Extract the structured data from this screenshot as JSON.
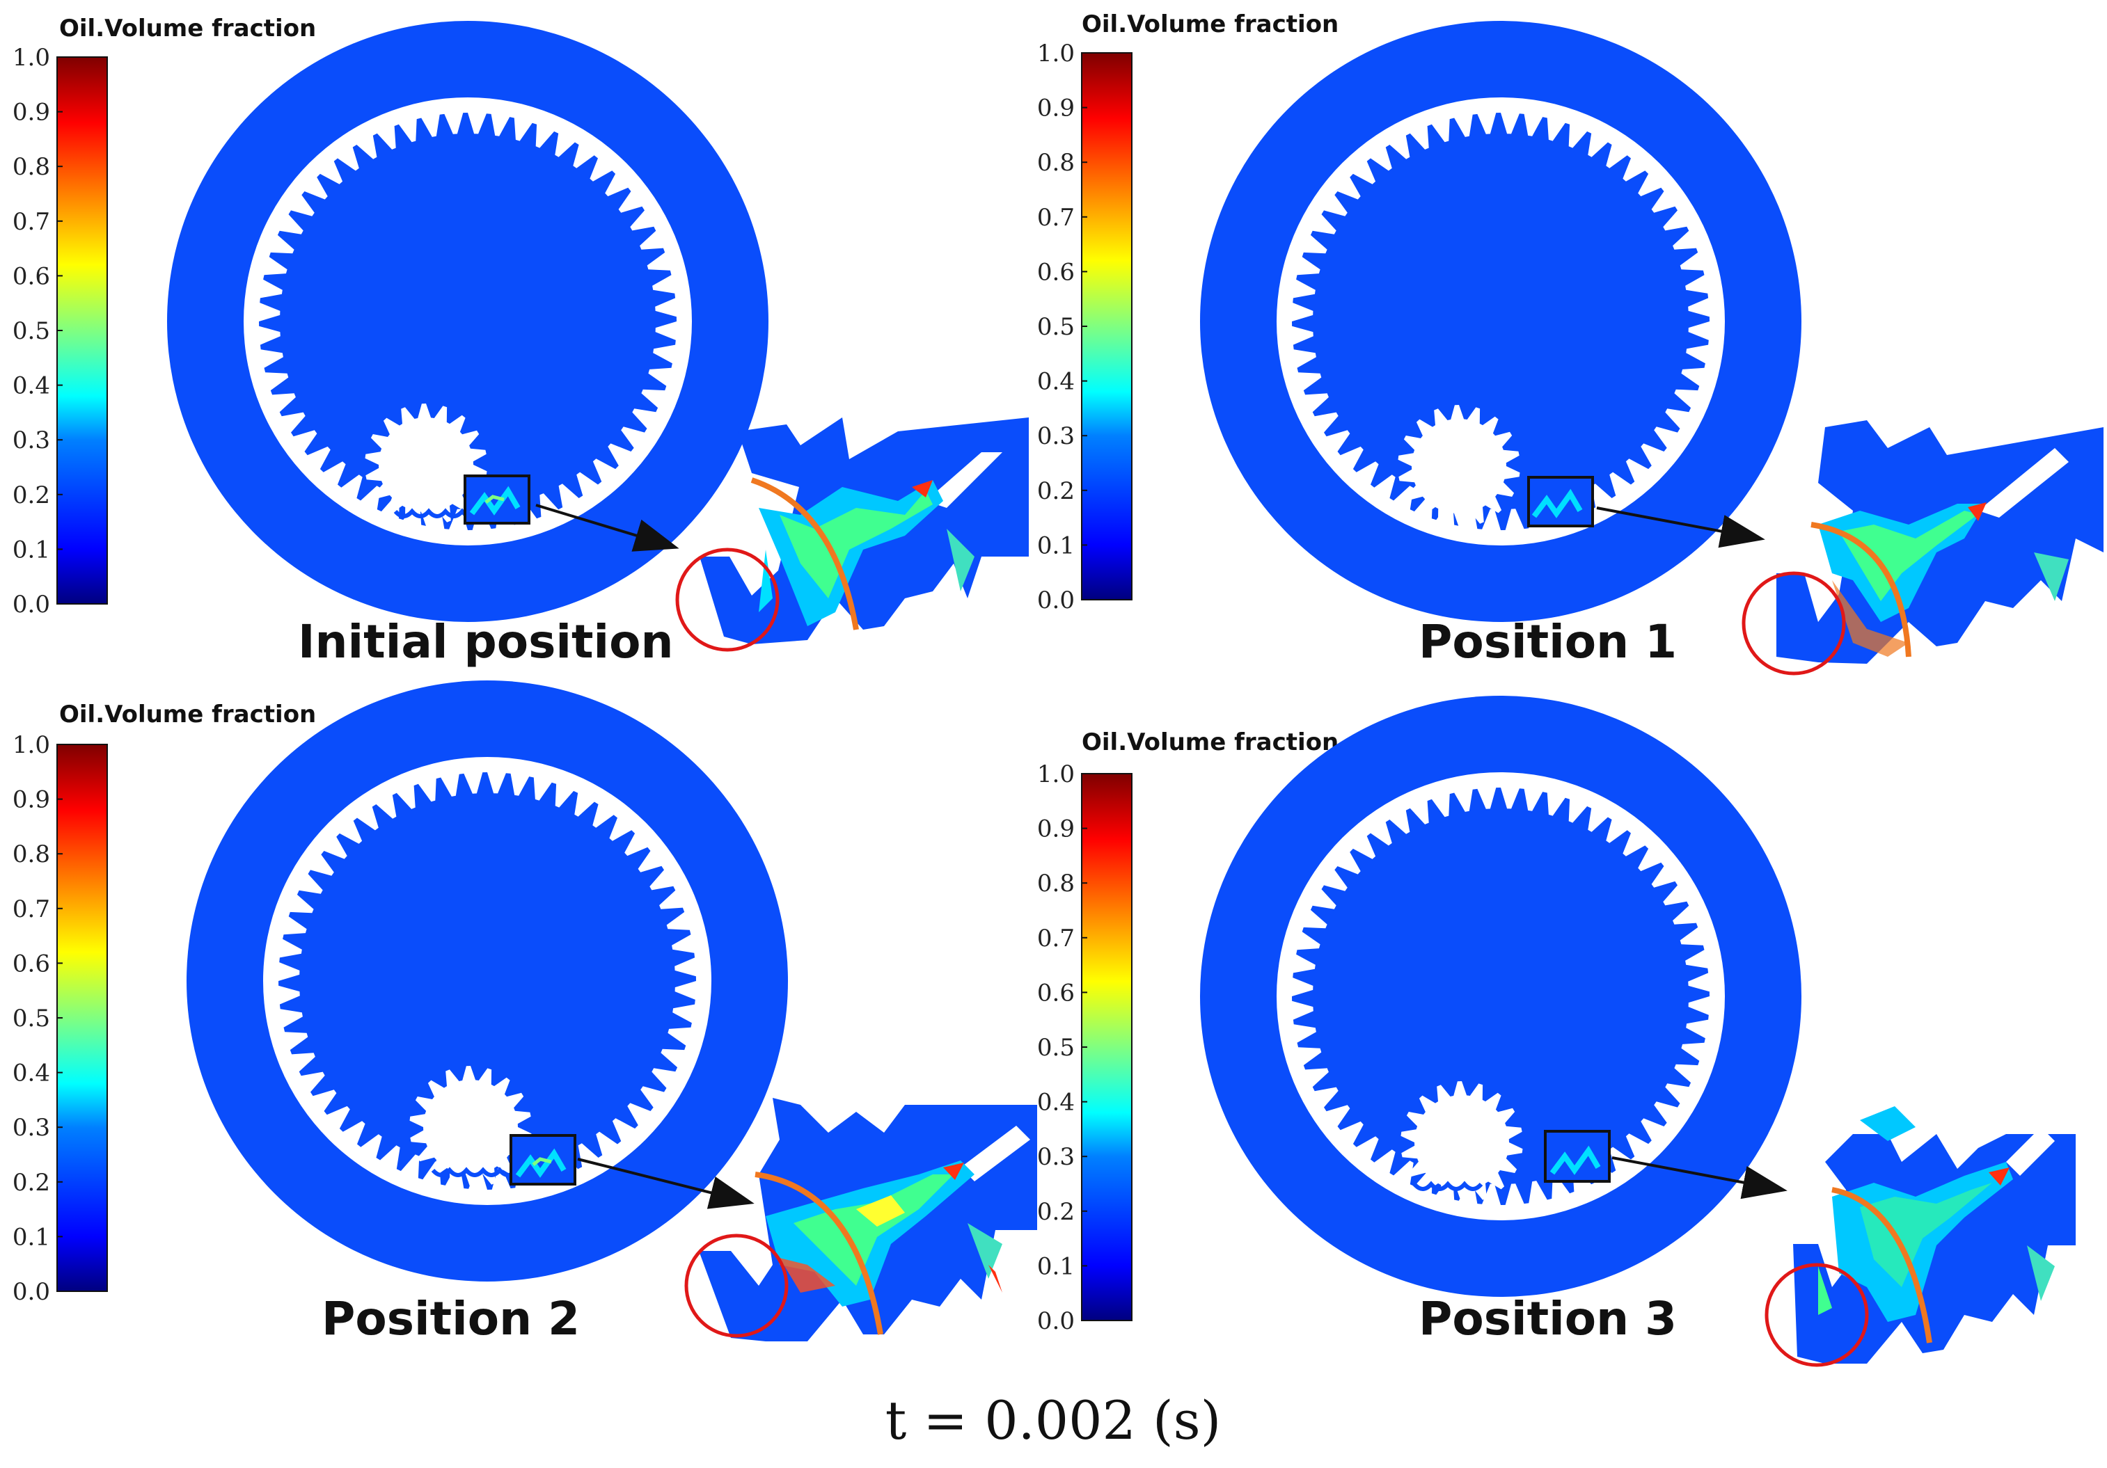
{
  "colorbar": {
    "title": "Oil.Volume fraction",
    "ticks": [
      "1.0",
      "0.9",
      "0.8",
      "0.7",
      "0.6",
      "0.5",
      "0.4",
      "0.3",
      "0.2",
      "0.1",
      "0.0"
    ],
    "gradient": [
      "#00007f",
      "#0000ff",
      "#0080ff",
      "#00ffff",
      "#80ff80",
      "#ffff00",
      "#ff8000",
      "#ff0000",
      "#7f0000"
    ]
  },
  "colors": {
    "fluid_blue": "#0a4dfb",
    "oil_orange": "#f07820",
    "highlight_red": "#e01818",
    "frame": "#111111"
  },
  "panels": [
    {
      "label": "Initial position"
    },
    {
      "label": "Position 1"
    },
    {
      "label": "Position 2"
    },
    {
      "label": "Position 3"
    }
  ],
  "time_label": "t = 0.002 (s)"
}
